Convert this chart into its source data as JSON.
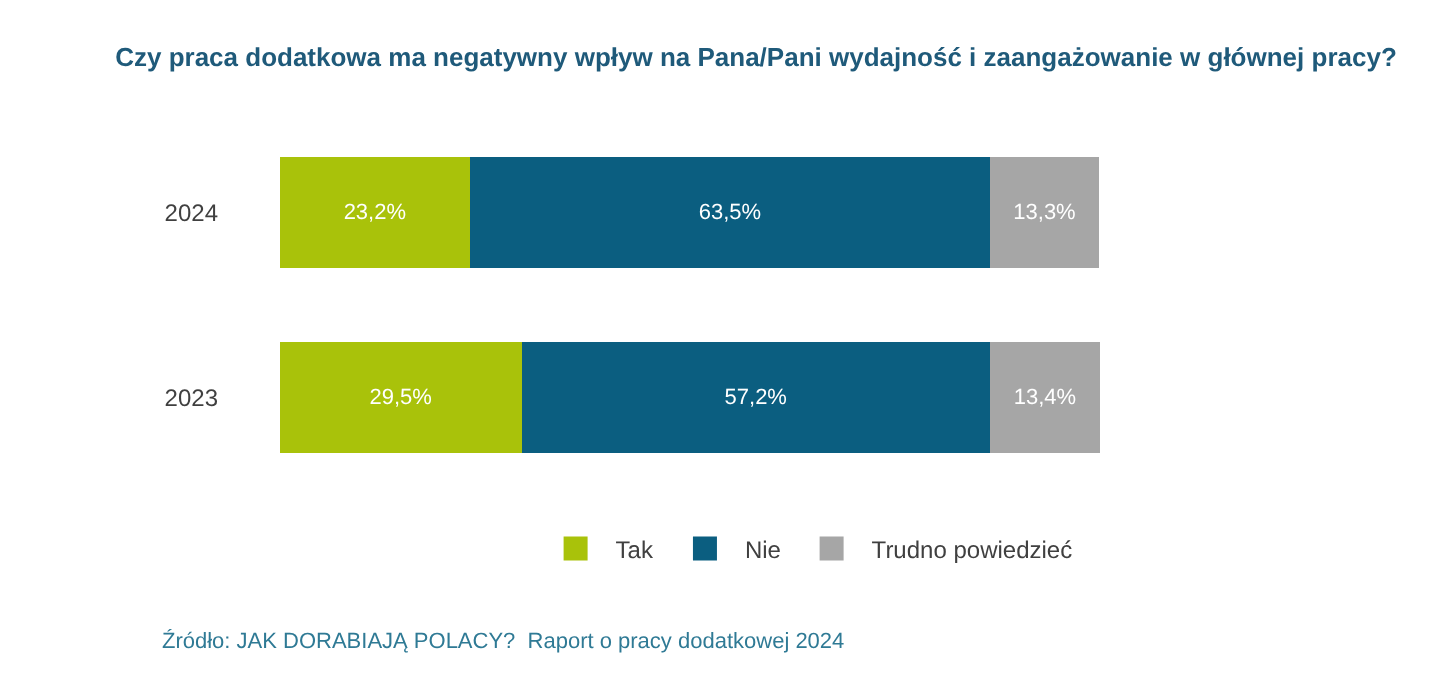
{
  "chart_data": {
    "type": "bar",
    "orientation": "horizontal",
    "stacked": true,
    "title": "Czy praca dodatkowa ma negatywny wpływ na Pana/Pani wydajność i zaangażowanie w głównej pracy?",
    "categories": [
      "2024",
      "2023"
    ],
    "series": [
      {
        "name": "Tak",
        "color": "#a9c20a",
        "values": [
          23.2,
          29.5
        ],
        "value_labels": [
          "23,2%",
          "29,5%"
        ]
      },
      {
        "name": "Nie",
        "color": "#0b5e80",
        "values": [
          63.5,
          57.2
        ],
        "value_labels": [
          "63,5%",
          "57,2%"
        ]
      },
      {
        "name": "Trudno powiedzieć",
        "color": "#a6a6a6",
        "values": [
          13.3,
          13.4
        ],
        "value_labels": [
          "13,3%",
          "13,4%"
        ]
      }
    ],
    "tick_labels": "y",
    "legend": "bottom",
    "annotations": [
      "Źródło: JAK DORABIAJĄ POLACY?  Raport o pracy dodatkowej 2024"
    ]
  }
}
